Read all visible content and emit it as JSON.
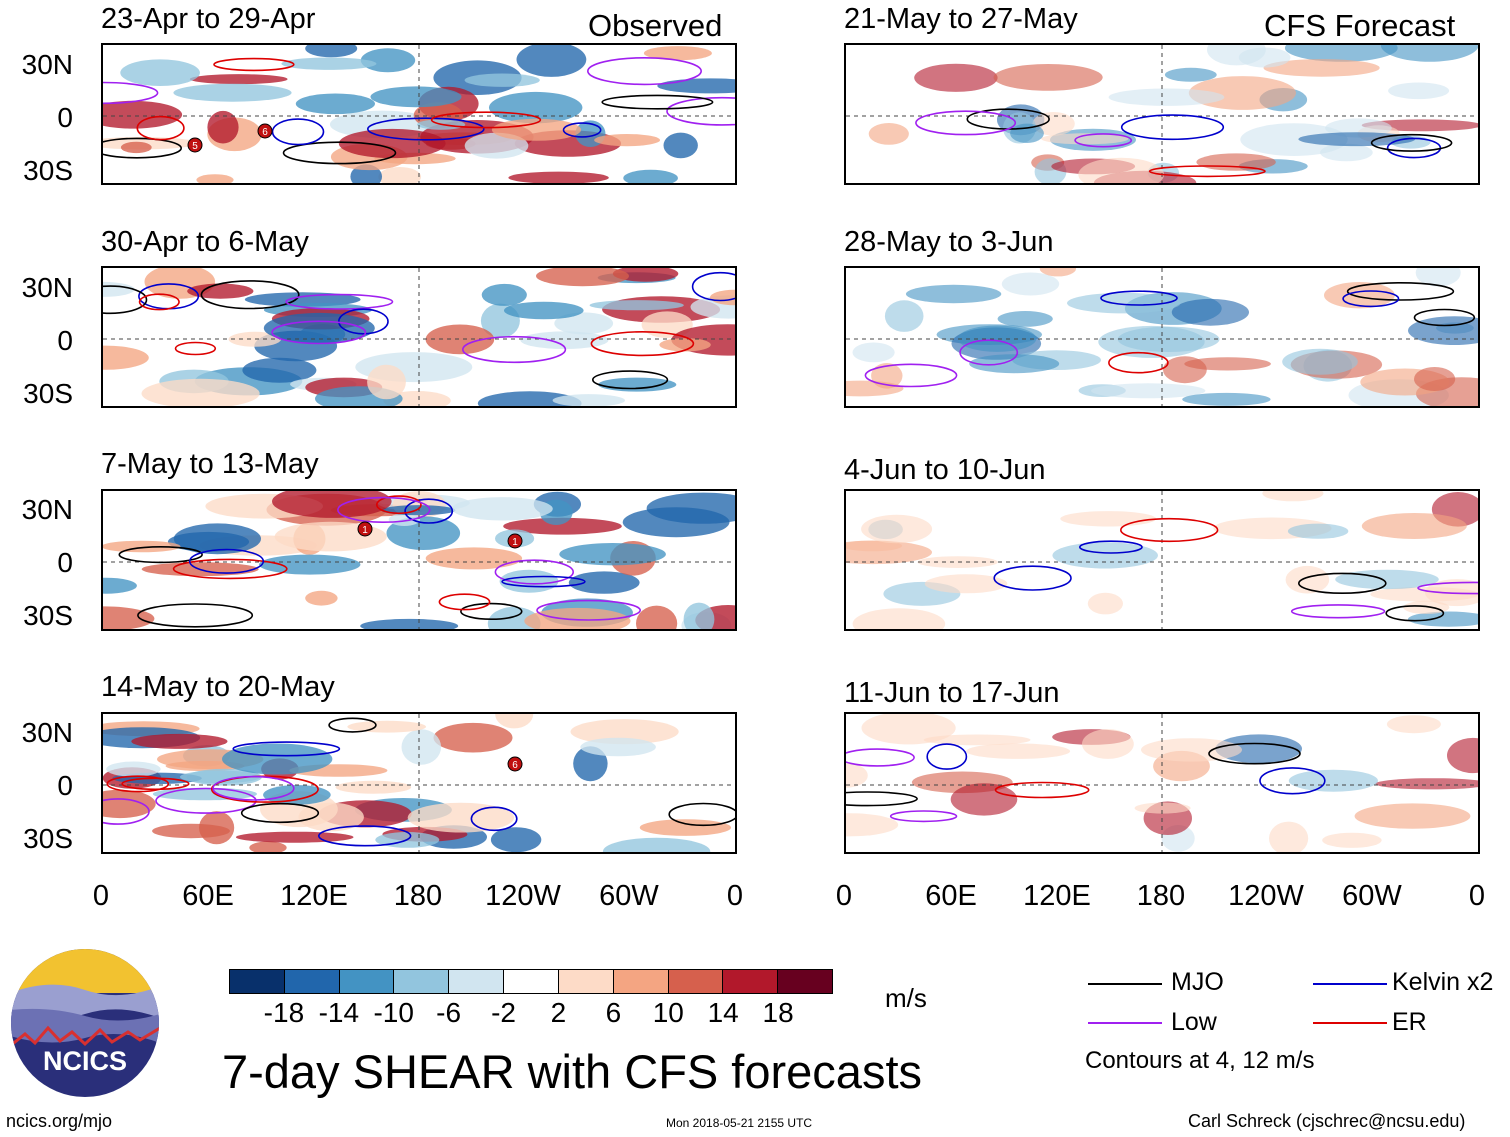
{
  "column_headers": {
    "left": "Observed",
    "right": "CFS Forecast"
  },
  "panels": [
    {
      "title": "23-Apr to 29-Apr",
      "group": "observed",
      "storms": [
        "5",
        "6"
      ]
    },
    {
      "title": "30-Apr to 6-May",
      "group": "observed",
      "storms": []
    },
    {
      "title": "7-May to 13-May",
      "group": "observed",
      "storms": [
        "1",
        "1"
      ]
    },
    {
      "title": "14-May to 20-May",
      "group": "observed",
      "storms": [
        "6"
      ]
    },
    {
      "title": "21-May to 27-May",
      "group": "forecast",
      "storms": []
    },
    {
      "title": "28-May to 3-Jun",
      "group": "forecast",
      "storms": []
    },
    {
      "title": "4-Jun to 10-Jun",
      "group": "forecast",
      "storms": []
    },
    {
      "title": "11-Jun to 17-Jun",
      "group": "forecast",
      "storms": []
    }
  ],
  "lat_labels": [
    "30N",
    "0",
    "30S"
  ],
  "lon_labels": [
    "0",
    "60E",
    "120E",
    "180",
    "120W",
    "60W",
    "0"
  ],
  "colorbar": {
    "colors": [
      "#08306b",
      "#2166ac",
      "#4393c3",
      "#92c5de",
      "#d1e5f0",
      "#ffffff",
      "#fddbc7",
      "#f4a582",
      "#d6604d",
      "#b2182b",
      "#67001f"
    ],
    "ticks": [
      "-18",
      "-14",
      "-10",
      "-6",
      "-2",
      "2",
      "6",
      "10",
      "14",
      "18"
    ],
    "unit": "m/s"
  },
  "legend": {
    "items": [
      {
        "label": "MJO",
        "color": "#000000"
      },
      {
        "label": "Kelvin x2",
        "color": "#0000cc"
      },
      {
        "label": "Low",
        "color": "#a020f0"
      },
      {
        "label": "ER",
        "color": "#dd0000"
      }
    ],
    "contours_note": "Contours at 4, 12 m/s"
  },
  "title": "7-day SHEAR with CFS forecasts",
  "logo_text": "NCICS",
  "footer": {
    "website": "ncics.org/mjo",
    "timestamp": "Mon 2018-05-21 2155 UTC",
    "credit": "Carl Schreck (cjschrec@ncsu.edu)"
  }
}
